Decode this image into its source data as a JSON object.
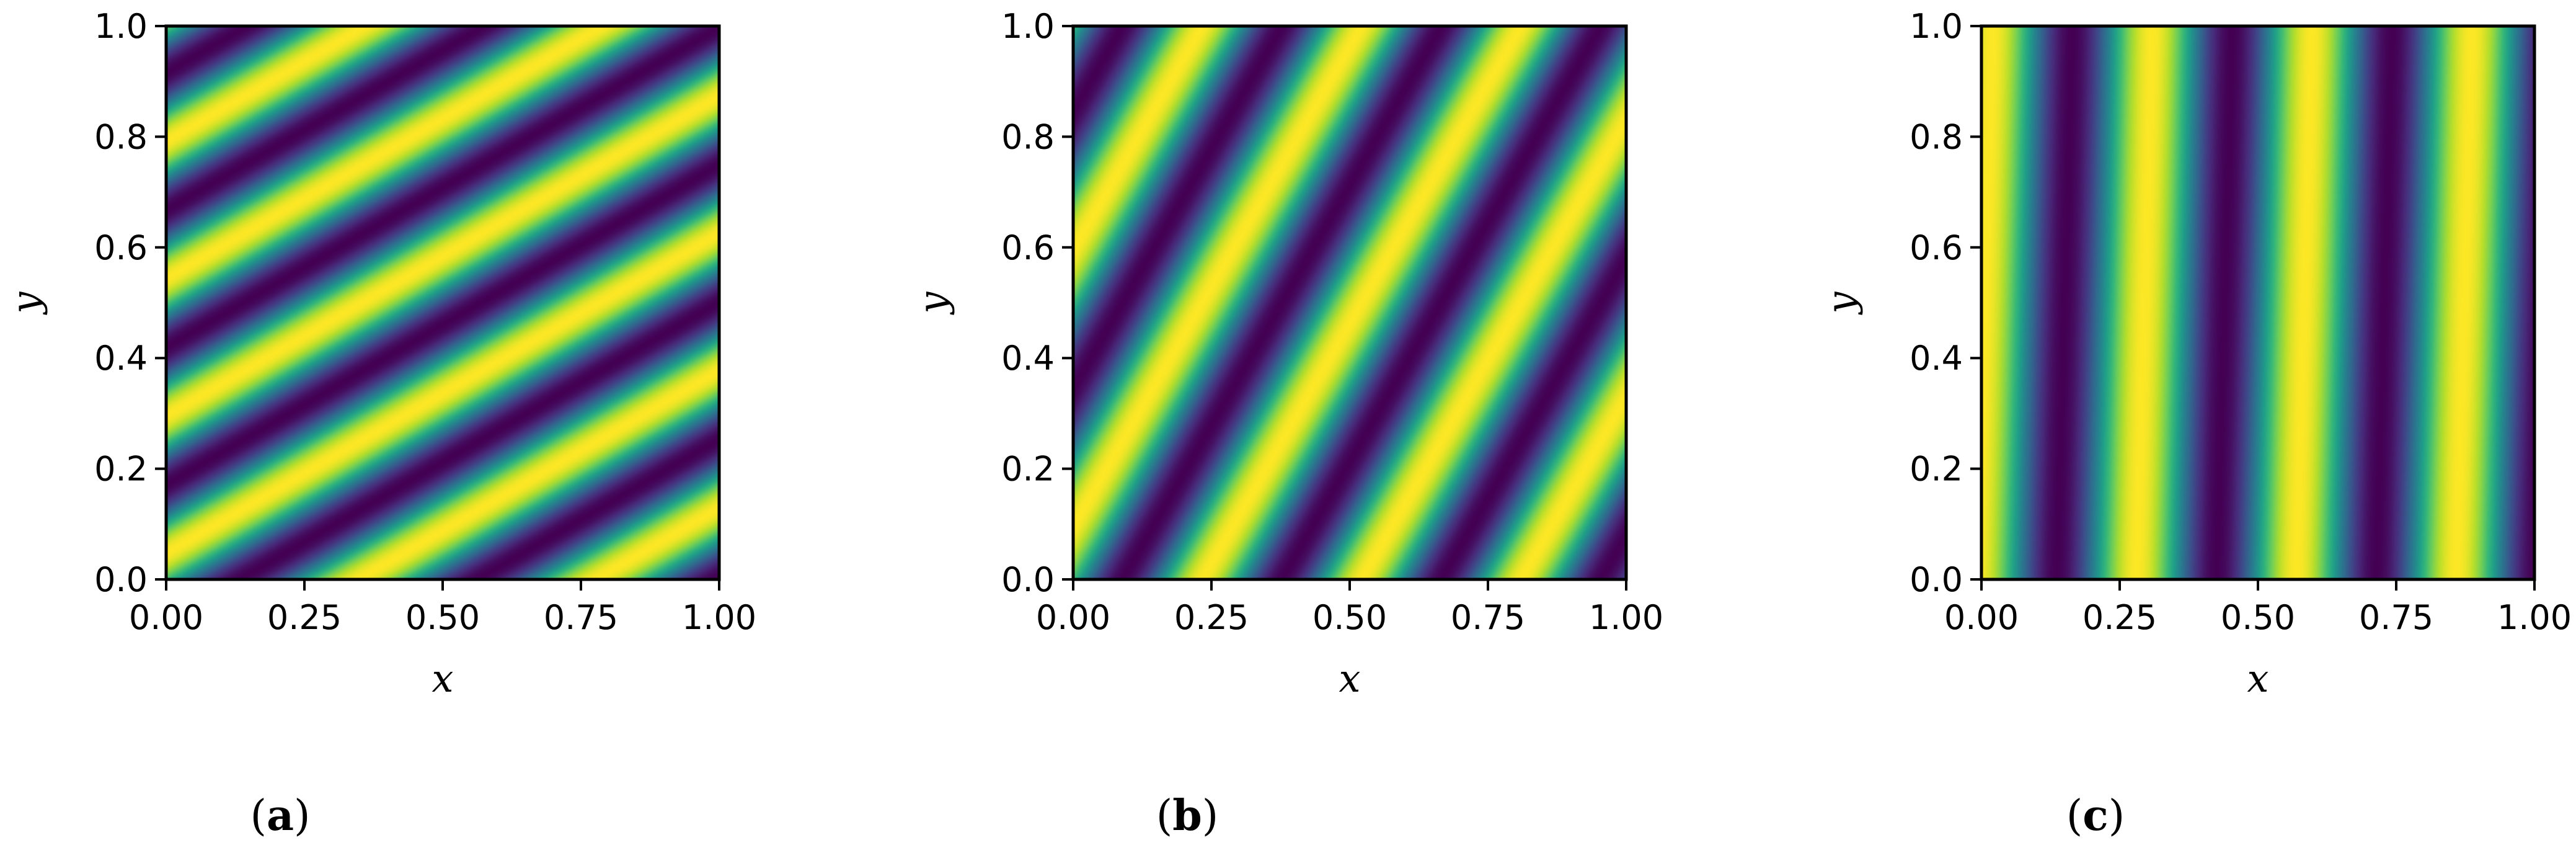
{
  "colormap": [
    "#440154",
    "#482878",
    "#3e4989",
    "#31688e",
    "#26828e",
    "#1f9e89",
    "#35b779",
    "#6ece58",
    "#b5de2b",
    "#fde725"
  ],
  "chart_data": [
    {
      "type": "heatmap",
      "title": "",
      "xlabel": "x",
      "ylabel": "y",
      "xlim": [
        0.0,
        1.0
      ],
      "ylim": [
        0.0,
        1.0
      ],
      "xticks": [
        "0.00",
        "0.25",
        "0.50",
        "0.75",
        "1.00"
      ],
      "yticks": [
        "0.0",
        "0.2",
        "0.4",
        "0.6",
        "0.8",
        "1.0"
      ],
      "caption": {
        "open": "(",
        "letter": "a",
        "close": ")"
      },
      "field": {
        "function": "sinusoidal plane wave",
        "kx": 2.33,
        "ky": -4.03,
        "phase": 0.19
      }
    },
    {
      "type": "heatmap",
      "title": "",
      "xlabel": "x",
      "ylabel": "y",
      "xlim": [
        0.0,
        1.0
      ],
      "ylim": [
        0.0,
        1.0
      ],
      "xticks": [
        "0.00",
        "0.25",
        "0.50",
        "0.75",
        "1.00"
      ],
      "yticks": [
        "0.0",
        "0.2",
        "0.4",
        "0.6",
        "0.8",
        "1.0"
      ],
      "caption": {
        "open": "(",
        "letter": "b",
        "close": ")"
      },
      "field": {
        "function": "sinusoidal plane wave",
        "kx": 3.47,
        "ky": -2.0,
        "phase": 0.19
      }
    },
    {
      "type": "heatmap",
      "title": "",
      "xlabel": "x",
      "ylabel": "y",
      "xlim": [
        0.0,
        1.0
      ],
      "ylim": [
        0.0,
        1.0
      ],
      "xticks": [
        "0.00",
        "0.25",
        "0.50",
        "0.75",
        "1.00"
      ],
      "yticks": [
        "0.0",
        "0.2",
        "0.4",
        "0.6",
        "0.8",
        "1.0"
      ],
      "caption": {
        "open": "(",
        "letter": "c",
        "close": ")"
      },
      "field": {
        "function": "sinusoidal plane wave",
        "kx": 3.46,
        "ky": -0.1,
        "phase": 0.03
      }
    }
  ]
}
